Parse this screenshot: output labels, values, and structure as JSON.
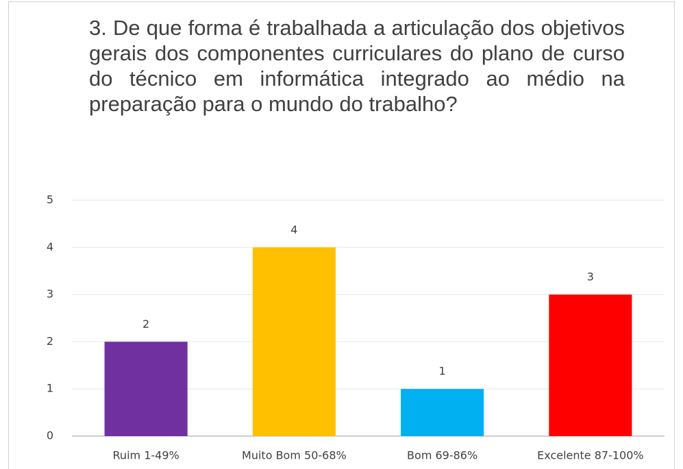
{
  "chart_data": {
    "type": "bar",
    "title": "3. De que forma é trabalhada a articulação dos objetivos gerais dos componentes curriculares do plano de curso do técnico em informática integrado ao médio na preparação para o mundo do trabalho?",
    "categories": [
      "Ruim  1-49%",
      "Muito Bom 50-68%",
      "Bom 69-86%",
      "Excelente 87-100%"
    ],
    "values": [
      2,
      4,
      1,
      3
    ],
    "colors": [
      "#7030a0",
      "#ffc000",
      "#00b0f0",
      "#ff0000"
    ],
    "ylim": [
      0,
      5
    ],
    "yticks": [
      0,
      1,
      2,
      3,
      4,
      5
    ],
    "grid": true
  }
}
